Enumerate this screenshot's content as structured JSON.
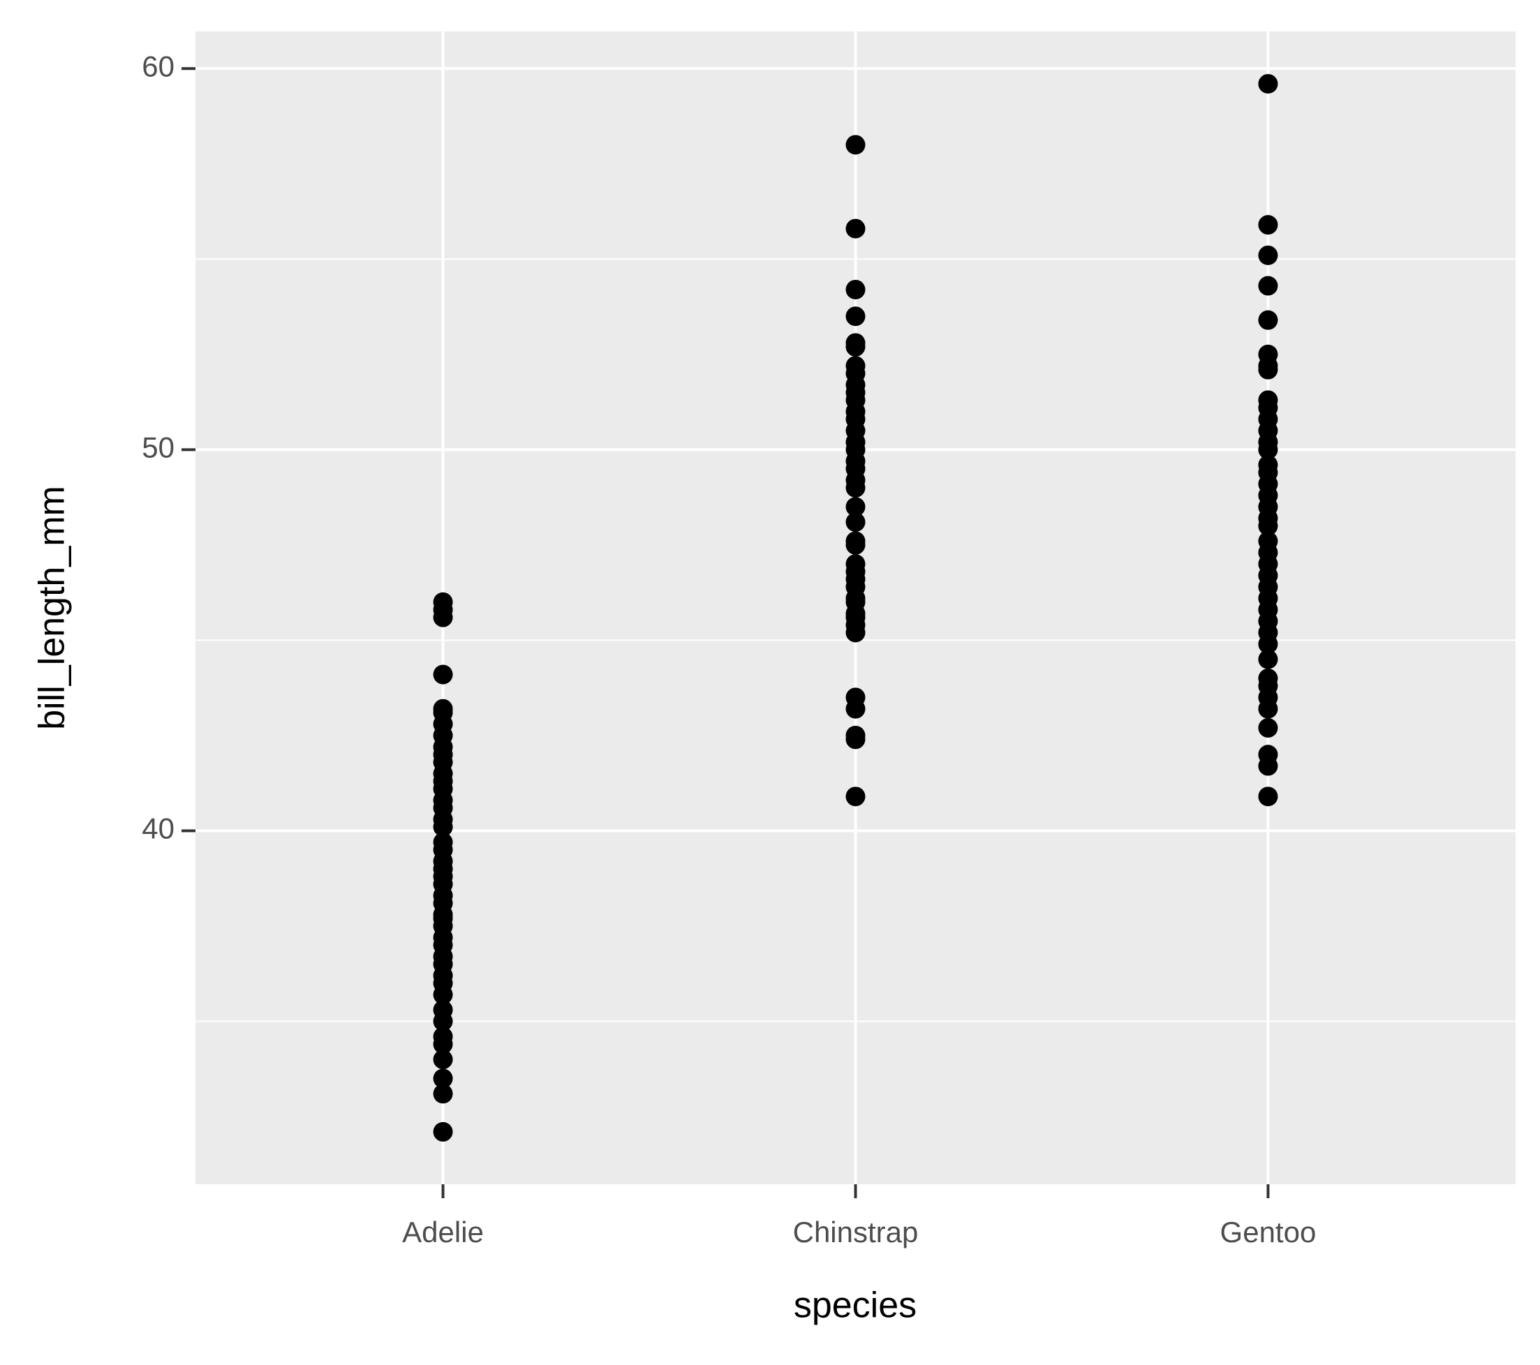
{
  "chart_data": {
    "type": "strip",
    "x_label": "species",
    "y_label": "bill_length_mm",
    "categories": [
      "Adelie",
      "Chinstrap",
      "Gentoo"
    ],
    "color": "#000000",
    "series": [
      {
        "values": [
          32.1,
          33.1,
          33.5,
          34.0,
          34.4,
          34.6,
          35.0,
          35.3,
          35.7,
          36.0,
          36.2,
          36.5,
          36.7,
          37.0,
          37.2,
          37.5,
          37.7,
          37.8,
          38.1,
          38.3,
          38.6,
          38.8,
          39.0,
          39.2,
          39.5,
          39.7,
          40.1,
          40.3,
          40.6,
          40.8,
          41.1,
          41.3,
          41.5,
          41.8,
          42.0,
          42.2,
          42.5,
          42.8,
          43.1,
          43.2,
          44.1,
          45.6,
          45.8,
          46.0
        ]
      },
      {
        "values": [
          40.9,
          42.4,
          42.5,
          43.2,
          43.5,
          45.2,
          45.4,
          45.6,
          45.7,
          46.0,
          46.1,
          46.4,
          46.6,
          46.8,
          47.0,
          47.5,
          47.6,
          48.1,
          48.5,
          49.0,
          49.2,
          49.5,
          49.7,
          50.0,
          50.2,
          50.5,
          50.8,
          51.0,
          51.3,
          51.5,
          51.7,
          52.0,
          52.2,
          52.7,
          52.8,
          53.5,
          54.2,
          55.8,
          58.0
        ]
      },
      {
        "values": [
          40.9,
          41.7,
          42.0,
          42.7,
          43.2,
          43.5,
          43.8,
          44.0,
          44.5,
          44.9,
          45.2,
          45.5,
          45.8,
          46.1,
          46.4,
          46.7,
          47.0,
          47.3,
          47.6,
          48.0,
          48.2,
          48.5,
          48.8,
          49.1,
          49.4,
          49.6,
          50.0,
          50.2,
          50.5,
          50.8,
          51.1,
          51.3,
          52.1,
          52.2,
          52.5,
          53.4,
          54.3,
          55.1,
          55.9,
          59.6
        ]
      }
    ],
    "ylim": [
      30.725,
      60.975
    ],
    "yticks": [
      40,
      50,
      60
    ],
    "minor_yticks": [
      35,
      45,
      55
    ],
    "grid": true
  }
}
